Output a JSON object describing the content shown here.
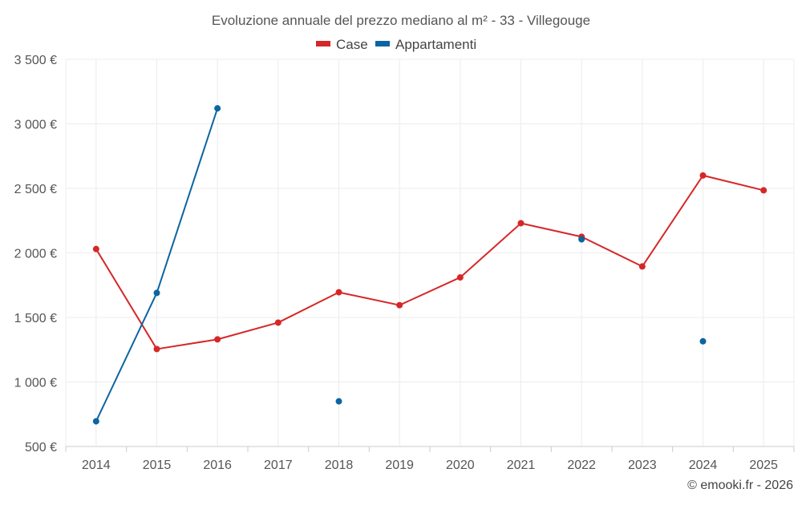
{
  "chart_data": {
    "type": "line",
    "title": "Evoluzione annuale del prezzo mediano al m² - 33 - Villegouge",
    "categories": [
      "2014",
      "2015",
      "2016",
      "2017",
      "2018",
      "2019",
      "2020",
      "2021",
      "2022",
      "2023",
      "2024",
      "2025"
    ],
    "ylim": [
      500,
      3500
    ],
    "yticks": [
      500,
      1000,
      1500,
      2000,
      2500,
      3000,
      3500
    ],
    "ytick_labels": [
      "500 €",
      "1 000 €",
      "1 500 €",
      "2 000 €",
      "2 500 €",
      "3 000 €",
      "3 500 €"
    ],
    "grid": true,
    "legend_position": "top-center",
    "series": [
      {
        "name": "Case",
        "color": "#d62728",
        "values": [
          2030,
          1255,
          1330,
          1460,
          1695,
          1595,
          1810,
          2230,
          2125,
          1895,
          2600,
          2485
        ]
      },
      {
        "name": "Appartamenti",
        "color": "#0b65a0",
        "values": [
          695,
          1690,
          3120,
          null,
          850,
          null,
          null,
          null,
          2105,
          null,
          1315,
          null
        ]
      }
    ]
  },
  "credit": "© emooki.fr - 2026"
}
